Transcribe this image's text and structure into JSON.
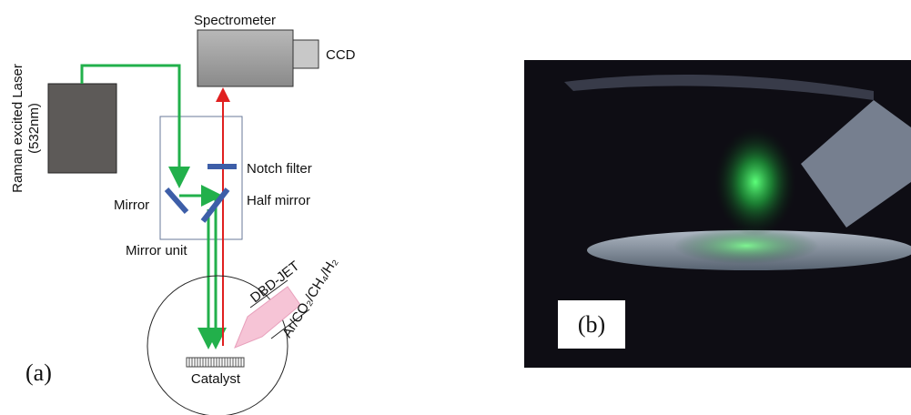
{
  "panel_a": {
    "label": "(a)",
    "spectrometer": "Spectrometer",
    "ccd": "CCD",
    "laser": [
      "Raman excited Laser",
      "(532nm)"
    ],
    "notch_filter": "Notch filter",
    "mirror": "Mirror",
    "half_mirror": "Half mirror",
    "mirror_unit": "Mirror unit",
    "jet": "DBD-JET",
    "gas": "Ar/CO₂/CH₄/H₂",
    "catalyst": "Catalyst"
  },
  "panel_b": {
    "label": "(b)"
  }
}
